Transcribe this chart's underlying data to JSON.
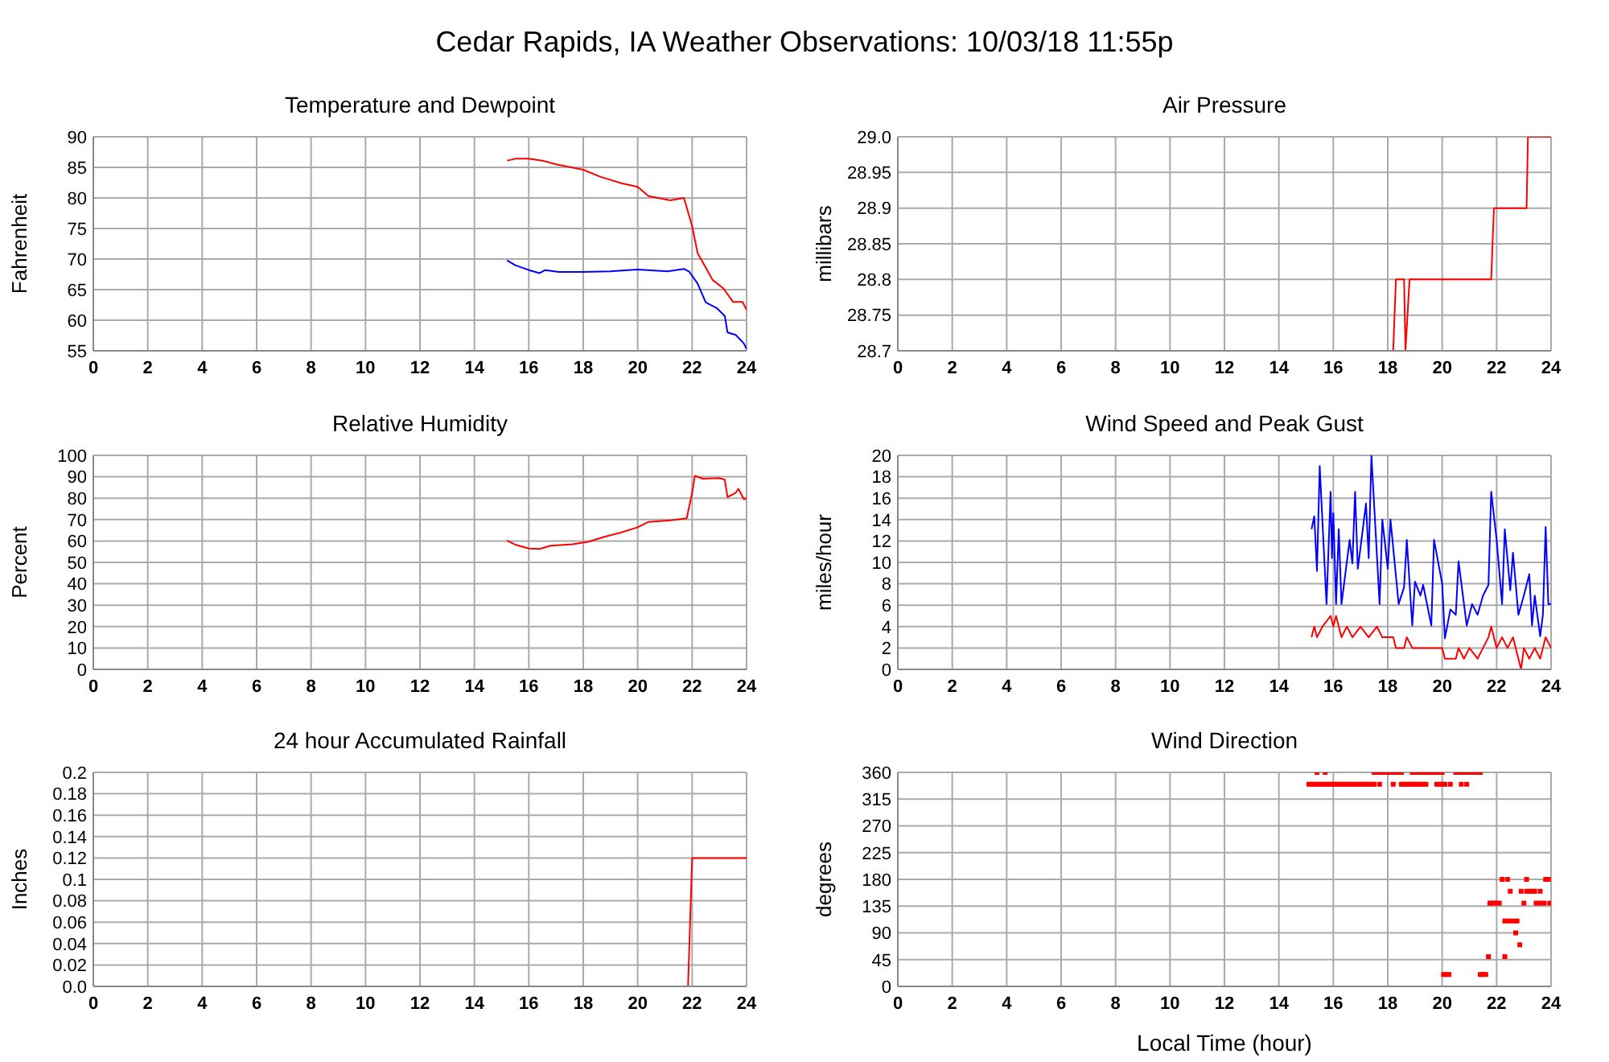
{
  "chart_data": [
    {
      "type": "line",
      "title": "Temperature and Dewpoint",
      "ylabel": "Fahrenheit",
      "annotations": [
        "Cedar Rapids, IA Weather Observations: 10/03/18 11:55p"
      ],
      "xlim": [
        0,
        24
      ],
      "xticks": [
        0,
        2,
        4,
        6,
        8,
        10,
        12,
        14,
        16,
        18,
        20,
        22,
        24
      ],
      "ylim": [
        55,
        90
      ],
      "yticks": [
        55,
        60,
        65,
        70,
        75,
        80,
        85,
        90
      ],
      "grid": true,
      "series": [
        {
          "color": "#ff0000",
          "x": [
            15.2,
            15.5,
            16.0,
            16.5,
            17.0,
            18.0,
            18.6,
            19.4,
            20.0,
            20.4,
            21.2,
            21.7,
            22.0,
            22.2,
            22.75,
            23.15,
            23.5,
            23.85,
            24.0
          ],
          "values": [
            86.1,
            86.4,
            86.4,
            86.1,
            85.5,
            84.6,
            83.5,
            82.4,
            81.8,
            80.3,
            79.6,
            80.0,
            75.4,
            71.0,
            66.6,
            65.2,
            63.0,
            63.0,
            61.7
          ]
        },
        {
          "color": "#0000ff",
          "x": [
            15.2,
            15.5,
            16.0,
            16.4,
            16.6,
            17.1,
            18.0,
            19.0,
            20.0,
            21.1,
            21.7,
            21.9,
            22.2,
            22.5,
            22.9,
            23.2,
            23.3,
            23.6,
            23.9,
            24.0
          ],
          "values": [
            69.8,
            69.0,
            68.2,
            67.7,
            68.2,
            67.9,
            67.9,
            68.0,
            68.3,
            68.0,
            68.4,
            67.9,
            66.0,
            62.9,
            62.0,
            60.7,
            58.0,
            57.6,
            56.2,
            55.3
          ]
        }
      ]
    },
    {
      "type": "line",
      "title": "Air Pressure",
      "ylabel": "millibars",
      "xlim": [
        0,
        24
      ],
      "xticks": [
        0,
        2,
        4,
        6,
        8,
        10,
        12,
        14,
        16,
        18,
        20,
        22,
        24
      ],
      "ylim": [
        28.7,
        29.0
      ],
      "yticks": [
        28.7,
        28.75,
        28.8,
        28.85,
        28.9,
        28.95,
        {
          "value": 29.0,
          "label": "29.0"
        }
      ],
      "grid": true,
      "series": [
        {
          "color": "#ff0000",
          "x": [
            18.2,
            18.3,
            18.6,
            18.65,
            18.8,
            21.8,
            21.9,
            23.1,
            23.15,
            24.0
          ],
          "values": [
            28.7,
            28.8,
            28.8,
            28.7,
            28.8,
            28.8,
            28.9,
            28.9,
            29.0,
            29.0
          ]
        }
      ]
    },
    {
      "type": "line",
      "title": "Relative Humidity",
      "ylabel": "Percent",
      "xlim": [
        0,
        24
      ],
      "xticks": [
        0,
        2,
        4,
        6,
        8,
        10,
        12,
        14,
        16,
        18,
        20,
        22,
        24
      ],
      "ylim": [
        0,
        100
      ],
      "yticks": [
        0,
        10,
        20,
        30,
        40,
        50,
        60,
        70,
        80,
        90,
        100
      ],
      "grid": true,
      "series": [
        {
          "color": "#ff0000",
          "x": [
            15.2,
            15.5,
            16.0,
            16.4,
            16.8,
            17.6,
            18.2,
            18.8,
            19.4,
            20.0,
            20.4,
            21.2,
            21.8,
            22.0,
            22.1,
            22.4,
            23.0,
            23.2,
            23.3,
            23.6,
            23.7,
            23.9,
            24.0
          ],
          "values": [
            60.2,
            58.3,
            56.5,
            56.3,
            57.8,
            58.5,
            59.7,
            62.0,
            64.0,
            66.4,
            68.9,
            69.6,
            70.6,
            82.5,
            90.4,
            89.1,
            89.4,
            88.6,
            80.5,
            82.5,
            84.4,
            79.5,
            80.0
          ]
        }
      ]
    },
    {
      "type": "line",
      "title": "Wind Speed and Peak Gust",
      "ylabel": "miles/hour",
      "xlim": [
        0,
        24
      ],
      "xticks": [
        0,
        2,
        4,
        6,
        8,
        10,
        12,
        14,
        16,
        18,
        20,
        22,
        24
      ],
      "ylim": [
        0,
        20
      ],
      "yticks": [
        0,
        2,
        4,
        6,
        8,
        10,
        12,
        14,
        16,
        18,
        20
      ],
      "grid": true,
      "series": [
        {
          "color": "#0000ff",
          "x": [
            15.2,
            15.3,
            15.4,
            15.5,
            15.75,
            15.9,
            15.95,
            16.0,
            16.1,
            16.2,
            16.3,
            16.6,
            16.7,
            16.8,
            16.9,
            17.0,
            17.2,
            17.3,
            17.4,
            17.7,
            17.8,
            18.0,
            18.1,
            18.4,
            18.6,
            18.7,
            18.9,
            19.0,
            19.2,
            19.3,
            19.6,
            19.7,
            20.0,
            20.1,
            20.3,
            20.5,
            20.6,
            20.9,
            21.1,
            21.3,
            21.5,
            21.7,
            21.8,
            22.0,
            22.2,
            22.3,
            22.5,
            22.6,
            22.8,
            23.0,
            23.2,
            23.3,
            23.4,
            23.6,
            23.7,
            23.8,
            23.9,
            24.0
          ],
          "values": [
            13.1,
            14.3,
            9.2,
            19.0,
            6.1,
            16.6,
            10.4,
            14.6,
            6.1,
            13.1,
            6.1,
            12.1,
            9.9,
            16.6,
            9.4,
            11.4,
            15.5,
            10.4,
            20.0,
            6.1,
            14.0,
            9.4,
            14.0,
            6.1,
            7.7,
            12.1,
            4.1,
            8.2,
            6.9,
            7.9,
            4.1,
            12.1,
            8.0,
            2.9,
            5.6,
            5.1,
            10.1,
            4.1,
            6.1,
            5.1,
            6.9,
            7.9,
            16.6,
            12.1,
            6.1,
            13.1,
            7.4,
            10.9,
            5.1,
            6.9,
            8.9,
            4.1,
            6.9,
            3.1,
            5.1,
            13.3,
            6.1,
            6.1
          ]
        },
        {
          "color": "#ff0000",
          "x": [
            15.2,
            15.3,
            15.4,
            15.6,
            15.9,
            16.0,
            16.1,
            16.3,
            16.5,
            16.7,
            17.0,
            17.3,
            17.6,
            17.8,
            18.2,
            18.3,
            18.6,
            18.7,
            18.9,
            20.0,
            20.1,
            20.5,
            20.6,
            20.8,
            21.0,
            21.3,
            21.5,
            21.7,
            21.8,
            22.0,
            22.2,
            22.4,
            22.6,
            22.8,
            22.9,
            23.0,
            23.2,
            23.4,
            23.6,
            23.8,
            24.0
          ],
          "values": [
            3,
            4,
            3,
            4,
            5,
            4,
            5,
            3,
            4,
            3,
            4,
            3,
            4,
            3,
            3,
            2,
            2,
            3,
            2,
            2,
            1,
            1,
            2,
            1,
            2,
            1,
            2,
            3,
            4,
            2,
            3,
            2,
            3,
            1,
            0,
            2,
            1,
            2,
            1,
            3,
            2
          ]
        }
      ]
    },
    {
      "type": "line",
      "title": "24 hour Accumulated Rainfall",
      "ylabel": "Inches",
      "xlim": [
        0,
        24
      ],
      "xticks": [
        0,
        2,
        4,
        6,
        8,
        10,
        12,
        14,
        16,
        18,
        20,
        22,
        24
      ],
      "ylim": [
        0,
        0.2
      ],
      "yticks": [
        {
          "value": 0,
          "label": "0.0"
        },
        0.02,
        0.04,
        0.06,
        0.08,
        0.1,
        0.12,
        0.14,
        0.16,
        0.18,
        0.2
      ],
      "grid": true,
      "series": [
        {
          "color": "#ff0000",
          "x": [
            15.25,
            21.85,
            22.0,
            24.0
          ],
          "values": [
            0,
            0,
            0.12,
            0.12
          ]
        }
      ]
    },
    {
      "type": "scatter",
      "title": "Wind Direction",
      "ylabel": "degrees",
      "xlabel": "Local Time (hour)",
      "marker": "square",
      "xlim": [
        0,
        24
      ],
      "xticks": [
        0,
        2,
        4,
        6,
        8,
        10,
        12,
        14,
        16,
        18,
        20,
        22,
        24
      ],
      "ylim": [
        0,
        360
      ],
      "yticks": [
        0,
        45,
        90,
        135,
        180,
        225,
        270,
        315,
        360
      ],
      "grid": true,
      "series": [
        {
          "color": "#ff0000",
          "x": [
            15.4,
            15.7,
            17.5,
            17.6,
            17.7,
            17.8,
            17.9,
            18.0,
            18.1,
            18.2,
            18.3,
            18.4,
            18.5,
            18.9,
            19.0,
            19.1,
            19.2,
            19.3,
            19.4,
            19.5,
            19.6,
            19.7,
            19.8,
            19.9,
            20.0,
            20.5,
            20.6,
            20.7,
            20.8,
            20.9,
            21.0,
            21.1,
            21.2,
            21.3,
            21.4,
            15.1,
            15.2,
            15.3,
            15.4,
            15.5,
            15.6,
            15.7,
            15.8,
            15.9,
            16.0,
            16.1,
            16.2,
            16.3,
            16.4,
            16.5,
            16.6,
            16.7,
            16.8,
            16.9,
            17.0,
            17.1,
            17.2,
            17.3,
            17.4,
            17.5,
            17.7,
            18.2,
            18.5,
            18.6,
            18.7,
            18.8,
            18.9,
            19.0,
            19.1,
            19.2,
            19.3,
            19.4,
            19.8,
            19.9,
            20.0,
            20.1,
            20.3,
            20.7,
            20.9,
            20.05,
            20.15,
            20.25,
            21.4,
            21.5,
            21.6,
            21.7,
            22.3,
            22.2,
            22.4,
            23.1,
            23.8,
            23.9,
            22.5,
            22.9,
            23.1,
            23.2,
            23.3,
            23.4,
            23.6,
            21.75,
            21.8,
            21.9,
            22.0,
            22.1,
            23.0,
            23.45,
            23.6,
            23.75,
            23.95,
            22.3,
            22.45,
            22.6,
            22.75,
            22.7,
            22.85
          ],
          "values": [
            360,
            360,
            360,
            360,
            360,
            360,
            360,
            360,
            360,
            360,
            360,
            360,
            360,
            360,
            360,
            360,
            360,
            360,
            360,
            360,
            360,
            360,
            360,
            360,
            360,
            360,
            360,
            360,
            360,
            360,
            360,
            360,
            360,
            360,
            360,
            340,
            340,
            340,
            340,
            340,
            340,
            340,
            340,
            340,
            340,
            340,
            340,
            340,
            340,
            340,
            340,
            340,
            340,
            340,
            340,
            340,
            340,
            340,
            340,
            340,
            340,
            340,
            340,
            340,
            340,
            340,
            340,
            340,
            340,
            340,
            340,
            340,
            340,
            340,
            340,
            340,
            340,
            340,
            340,
            20,
            20,
            20,
            20,
            20,
            20,
            50,
            50,
            180,
            180,
            180,
            180,
            180,
            160,
            160,
            160,
            160,
            160,
            160,
            160,
            140,
            140,
            140,
            140,
            140,
            140,
            140,
            140,
            140,
            140,
            110,
            110,
            110,
            110,
            90,
            70
          ]
        }
      ]
    }
  ]
}
